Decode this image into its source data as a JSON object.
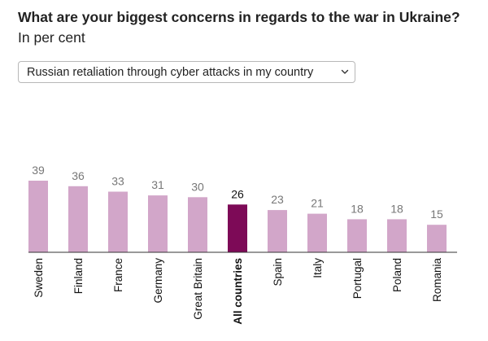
{
  "header": {
    "title": "What are your biggest concerns in regards to the war in Ukraine?",
    "subtitle": "In per cent"
  },
  "filter": {
    "selected": "Russian retaliation through cyber attacks in my country"
  },
  "colors": {
    "bar": "#d2a6c9",
    "highlight": "#7d0a57",
    "value_label": "#777777",
    "highlight_label": "#111111",
    "axis": "#333333"
  },
  "chart_data": {
    "type": "bar",
    "categories": [
      "Sweden",
      "Finland",
      "France",
      "Germany",
      "Great Britain",
      "All countries",
      "Spain",
      "Italy",
      "Portugal",
      "Poland",
      "Romania"
    ],
    "values": [
      39,
      36,
      33,
      31,
      30,
      26,
      23,
      21,
      18,
      18,
      15
    ],
    "highlight": "All countries",
    "title": "What are your biggest concerns in regards to the war in Ukraine?",
    "subtitle": "In per cent",
    "xlabel": "",
    "ylabel": "",
    "grid": false,
    "legend": "none",
    "ylim": [
      0,
      39
    ]
  }
}
